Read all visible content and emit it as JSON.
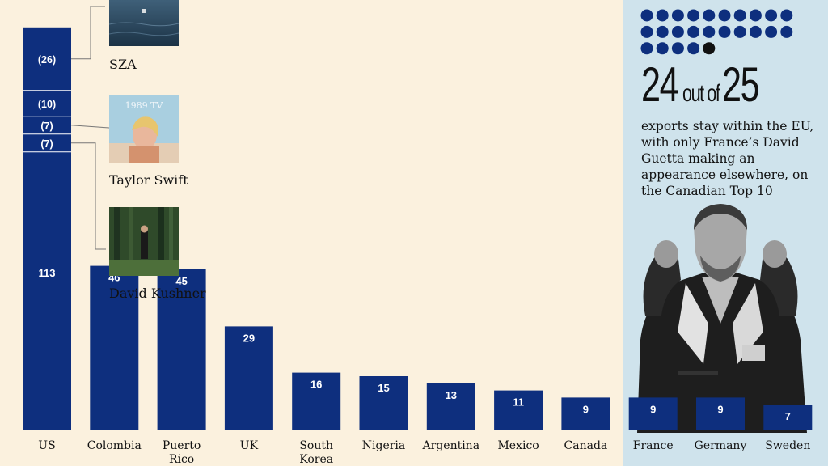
{
  "chart_data": {
    "type": "bar",
    "categories": [
      "US",
      "Colombia",
      "Puerto\nRico",
      "UK",
      "South\nKorea",
      "Nigeria",
      "Argentina",
      "Mexico",
      "Canada",
      "France",
      "Germany",
      "Sweden"
    ],
    "values": [
      113,
      46,
      45,
      29,
      16,
      15,
      13,
      11,
      9,
      9,
      9,
      7
    ],
    "us_segments": [
      26,
      10,
      7,
      7
    ],
    "ylim": [
      0,
      130
    ],
    "bar_color": "#0e2f7e",
    "eu_panel_color": "#cfe3ec",
    "background": "#fbf1de"
  },
  "artists": [
    {
      "name": "SZA"
    },
    {
      "name": "Taylor Swift",
      "album_text": "1989 TV"
    },
    {
      "name": "David Kushner"
    }
  ],
  "eu_stat": {
    "num_a": "24",
    "mid": "out of",
    "num_b": "25",
    "text": "exports stay within the EU, with only France’s David Guetta making an appearance elsewhere, on the Canadian Top 10",
    "dots_total": 25,
    "dots_highlight": 1,
    "dot_color": "#0e2f7e",
    "highlight_color": "#111111"
  }
}
